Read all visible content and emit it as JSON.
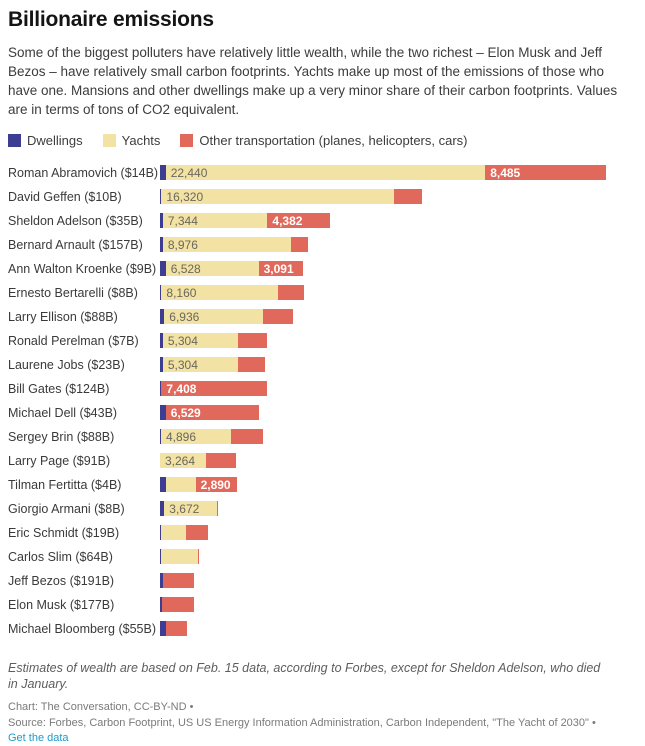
{
  "header": {
    "title": "Billionaire emissions",
    "description": "Some of the biggest polluters have relatively little wealth, while the two richest – Elon Musk and Jeff Bezos – have relatively small carbon footprints. Yachts make up most of the emissions of those who have one. Mansions and other dwellings make up a very minor share of their carbon footprints. Values are in terms of tons of CO2 equivalent."
  },
  "legend": [
    {
      "key": "dwellings",
      "label": "Dwellings",
      "color": "#3D3D92"
    },
    {
      "key": "yachts",
      "label": "Yachts",
      "color": "#F2E2A4"
    },
    {
      "key": "other",
      "label": "Other transportation (planes, helicopters, cars)",
      "color": "#E0695C"
    }
  ],
  "chart_data": {
    "type": "bar",
    "orientation": "horizontal",
    "stacked": true,
    "unit": "tons of CO2 equivalent",
    "xlim": [
      0,
      33500
    ],
    "grid": false,
    "legend_position": "top",
    "series": [
      "Dwellings",
      "Yachts",
      "Other transportation (planes, helicopters, cars)"
    ],
    "rows": [
      {
        "label": "Roman Abramovich ($14B)",
        "dwellings": 400,
        "yachts": 22440,
        "other": 8485,
        "labels": {
          "yachts": "22,440",
          "other": "8,485"
        }
      },
      {
        "label": "David Geffen ($10B)",
        "dwellings": 100,
        "yachts": 16320,
        "other": 1960,
        "labels": {
          "yachts": "16,320"
        }
      },
      {
        "label": "Sheldon Adelson ($35B)",
        "dwellings": 200,
        "yachts": 7344,
        "other": 4382,
        "labels": {
          "yachts": "7,344",
          "other": "4,382"
        }
      },
      {
        "label": "Bernard Arnault ($157B)",
        "dwellings": 200,
        "yachts": 8976,
        "other": 1190,
        "labels": {
          "yachts": "8,976"
        }
      },
      {
        "label": "Ann Walton Kroenke ($9B)",
        "dwellings": 400,
        "yachts": 6528,
        "other": 3091,
        "labels": {
          "yachts": "6,528",
          "other": "3,091"
        }
      },
      {
        "label": "Ernesto Bertarelli ($8B)",
        "dwellings": 100,
        "yachts": 8160,
        "other": 1820,
        "labels": {
          "yachts": "8,160"
        }
      },
      {
        "label": "Larry Ellison ($88B)",
        "dwellings": 300,
        "yachts": 6936,
        "other": 2100,
        "labels": {
          "yachts": "6,936"
        }
      },
      {
        "label": "Ronald Perelman ($7B)",
        "dwellings": 200,
        "yachts": 5304,
        "other": 2030,
        "labels": {
          "yachts": "5,304"
        }
      },
      {
        "label": "Laurene Jobs ($23B)",
        "dwellings": 200,
        "yachts": 5304,
        "other": 1890,
        "labels": {
          "yachts": "5,304"
        }
      },
      {
        "label": "Bill Gates ($124B)",
        "dwellings": 100,
        "yachts": 0,
        "other": 7408,
        "labels": {
          "other": "7,408"
        }
      },
      {
        "label": "Michael Dell ($43B)",
        "dwellings": 400,
        "yachts": 0,
        "other": 6529,
        "labels": {
          "other": "6,529"
        }
      },
      {
        "label": "Sergey Brin ($88B)",
        "dwellings": 70,
        "yachts": 4896,
        "other": 2300,
        "labels": {
          "yachts": "4,896"
        }
      },
      {
        "label": "Larry Page ($91B)",
        "dwellings": 0,
        "yachts": 3264,
        "other": 2050,
        "labels": {
          "yachts": "3,264"
        }
      },
      {
        "label": "Tilman Fertitta ($4B)",
        "dwellings": 400,
        "yachts": 2100,
        "other": 2890,
        "labels": {
          "other": "2,890"
        }
      },
      {
        "label": "Giorgio Armani ($8B)",
        "dwellings": 300,
        "yachts": 3672,
        "other": 100,
        "labels": {
          "yachts": "3,672"
        }
      },
      {
        "label": "Eric Schmidt ($19B)",
        "dwellings": 100,
        "yachts": 1750,
        "other": 1540,
        "labels": {}
      },
      {
        "label": "Carlos Slim ($64B)",
        "dwellings": 100,
        "yachts": 2590,
        "other": 70,
        "labels": {}
      },
      {
        "label": "Jeff Bezos ($191B)",
        "dwellings": 200,
        "yachts": 0,
        "other": 2170,
        "labels": {}
      },
      {
        "label": "Elon Musk ($177B)",
        "dwellings": 150,
        "yachts": 0,
        "other": 2240,
        "labels": {}
      },
      {
        "label": "Michael Bloomberg ($55B)",
        "dwellings": 400,
        "yachts": 0,
        "other": 1470,
        "labels": {}
      }
    ]
  },
  "footer": {
    "note": "Estimates of wealth are based on Feb. 15 data, according to Forbes, except for Sheldon Adelson, who died in January.",
    "chart_credit": "Chart: The Conversation, CC-BY-ND •",
    "source_credit": "Source: Forbes, Carbon Footprint, US US Energy Information Administration, Carbon Independent, \"The Yacht of 2030\" •",
    "link_label": "Get the data",
    "link_color": "#1F9AC9"
  }
}
